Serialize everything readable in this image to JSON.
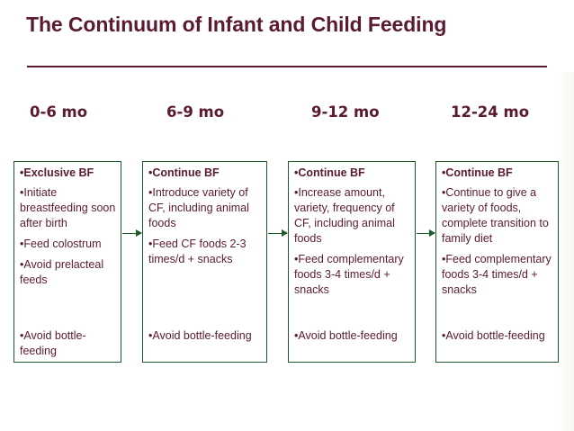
{
  "title": "The Continuum of Infant and Child Feeding",
  "stages": [
    {
      "age": "0-6 mo",
      "heading": "•Exclusive BF",
      "items": [
        "•Initiate breastfeeding soon after birth",
        "•Feed colostrum",
        "•Avoid prelacteal feeds"
      ],
      "footer": "•Avoid bottle-feeding"
    },
    {
      "age": "6-9 mo",
      "heading": "•Continue BF",
      "items": [
        "•Introduce variety of CF, including animal foods",
        "•Feed CF foods 2-3 times/d + snacks"
      ],
      "footer": "•Avoid bottle-feeding"
    },
    {
      "age": "9-12 mo",
      "heading": "•Continue BF",
      "items": [
        "•Increase amount, variety, frequency of CF, including animal foods",
        "•Feed complementary foods 3-4 times/d + snacks"
      ],
      "footer": "•Avoid bottle-feeding"
    },
    {
      "age": "12-24 mo",
      "heading": "•Continue BF",
      "items": [
        "•Continue to give a variety of foods, complete transition to family diet",
        "•Feed complementary foods 3-4 times/d + snacks"
      ],
      "footer": "•Avoid bottle-feeding"
    }
  ],
  "colors": {
    "title": "#5a1a31",
    "text": "#5a1a31",
    "border": "#1e5a2e"
  }
}
